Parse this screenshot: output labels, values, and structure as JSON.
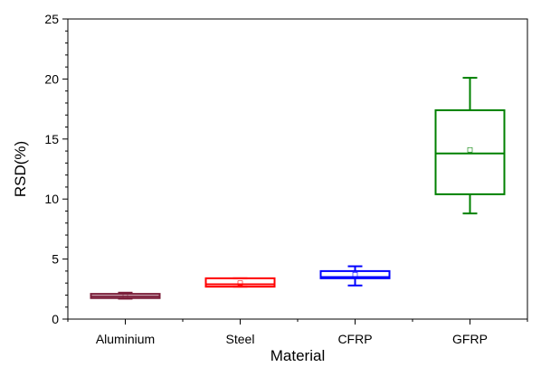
{
  "chart_data": {
    "type": "box",
    "xlabel": "Material",
    "ylabel": "RSD(%)",
    "ylim": [
      0,
      25
    ],
    "yticks": [
      0,
      5,
      10,
      15,
      20,
      25
    ],
    "y_minor_step": 1,
    "grid": false,
    "legend": "none",
    "categories": [
      "Aluminium",
      "Steel",
      "CFRP",
      "GFRP"
    ],
    "boxes": [
      {
        "category": "Aluminium",
        "color": "#7b1f3a",
        "whisker_low": 1.7,
        "q1": 1.75,
        "median": 1.9,
        "q3": 2.1,
        "whisker_high": 2.2,
        "mean": 1.9
      },
      {
        "category": "Steel",
        "color": "#ff0000",
        "whisker_low": 2.7,
        "q1": 2.7,
        "median": 2.9,
        "q3": 3.4,
        "whisker_high": 3.4,
        "mean": 3.0
      },
      {
        "category": "CFRP",
        "color": "#0000ff",
        "whisker_low": 2.8,
        "q1": 3.4,
        "median": 3.5,
        "q3": 4.0,
        "whisker_high": 4.4,
        "mean": 3.7
      },
      {
        "category": "GFRP",
        "color": "#008000",
        "whisker_low": 8.8,
        "q1": 10.4,
        "median": 13.8,
        "q3": 17.4,
        "whisker_high": 20.1,
        "mean": 14.1
      }
    ]
  }
}
